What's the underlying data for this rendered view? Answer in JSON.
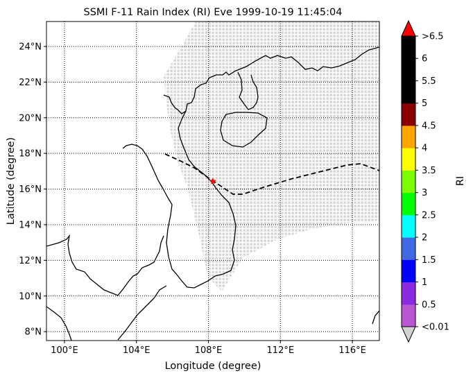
{
  "chart_data": {
    "type": "map",
    "title": "SSMI F-11 Rain Index (RI) Eve 1999-10-19 11:45:04",
    "xlabel": "Longitude (degree)",
    "ylabel": "Latitude (degree)",
    "xlim": [
      99,
      117.5
    ],
    "ylim": [
      7.5,
      25.4
    ],
    "x_ticks": [
      100,
      104,
      108,
      112,
      116
    ],
    "x_tick_labels": [
      "100°E",
      "104°E",
      "108°E",
      "112°E",
      "116°E"
    ],
    "y_ticks": [
      8,
      10,
      12,
      14,
      16,
      18,
      20,
      22,
      24
    ],
    "y_tick_labels": [
      "8°N",
      "10°N",
      "12°N",
      "14°N",
      "16°N",
      "18°N",
      "20°N",
      "22°N",
      "24°N"
    ],
    "grid": true,
    "swath_color": "#d3d3d3",
    "track_style": "dashed",
    "storm_center": {
      "lon": 108.2,
      "lat": 16.4,
      "marker": "red-star"
    },
    "colorbar": {
      "label": "RI",
      "tick_labels": [
        "<0.01",
        "0.5",
        "1",
        "1.5",
        "2",
        "2.5",
        "3",
        "3.5",
        "4",
        "4.5",
        "5",
        "5.5",
        "6",
        ">6.5"
      ],
      "colors": [
        "#ba55d3",
        "#8a2be2",
        "#0000ff",
        "#4169e1",
        "#00ffff",
        "#00ff00",
        "#7cfc00",
        "#ffff00",
        "#ffa500",
        "#8b0000",
        "#000000",
        "#000000",
        "#000000"
      ],
      "under_color": "#d3d3d3",
      "over_color": "#ff0000"
    }
  }
}
